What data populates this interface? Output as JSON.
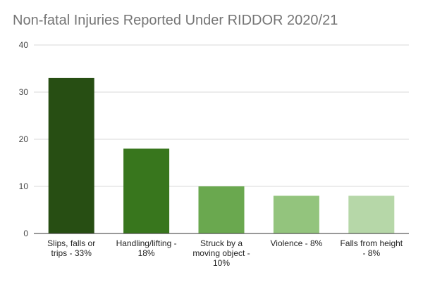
{
  "chart_data": {
    "type": "bar",
    "title": "Non-fatal Injuries Reported Under RIDDOR 2020/21",
    "xlabel": "",
    "ylabel": "",
    "ylim": [
      0,
      40
    ],
    "yticks": [
      0,
      10,
      20,
      30,
      40
    ],
    "grid": true,
    "legend": "none",
    "categories": [
      [
        "Slips, falls or",
        "trips -  33%"
      ],
      [
        "Handling/lifting -",
        "18%"
      ],
      [
        "Struck by a",
        "moving object -",
        "10%"
      ],
      [
        "Violence - 8%"
      ],
      [
        "Falls from height",
        "- 8%"
      ]
    ],
    "values": [
      33,
      18,
      10,
      8,
      8
    ],
    "colors": [
      "#274e13",
      "#38761d",
      "#6aa84f",
      "#93c47d",
      "#b6d7a8"
    ],
    "gridline_color": "#d9d9d9",
    "axis_color": "#333333"
  }
}
